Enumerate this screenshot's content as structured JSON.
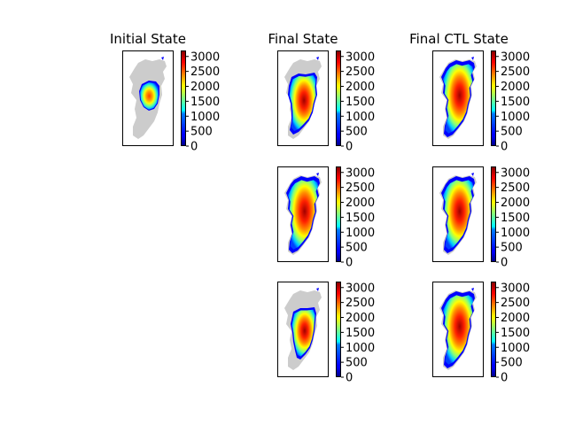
{
  "chart_data": {
    "type": "heatmap",
    "colormap": "jet",
    "background_land_color": "#cccccc",
    "frame_color": "#000000",
    "columns": [
      {
        "title": "Initial State",
        "panels": 1
      },
      {
        "title": "Final State",
        "panels": 3
      },
      {
        "title": "Final CTL State",
        "panels": 3
      }
    ],
    "colorbar": {
      "vmin": 0,
      "vmax": 3200,
      "ticks": [
        0,
        500,
        1000,
        1500,
        2000,
        2500,
        3000
      ],
      "tick_labels": [
        "0",
        "500",
        "1000",
        "1500",
        "2000",
        "2500",
        "3000"
      ]
    },
    "panels": [
      {
        "column": "Initial State",
        "row": 1,
        "ice_extent": "small-central",
        "peak": 2500
      },
      {
        "column": "Final State",
        "row": 1,
        "ice_extent": "partial",
        "peak": 3100
      },
      {
        "column": "Final State",
        "row": 2,
        "ice_extent": "full",
        "peak": 3200
      },
      {
        "column": "Final State",
        "row": 3,
        "ice_extent": "partial-retreat",
        "peak": 3100
      },
      {
        "column": "Final CTL State",
        "row": 1,
        "ice_extent": "full",
        "peak": 3200
      },
      {
        "column": "Final CTL State",
        "row": 2,
        "ice_extent": "full",
        "peak": 3200
      },
      {
        "column": "Final CTL State",
        "row": 3,
        "ice_extent": "full",
        "peak": 3200
      }
    ]
  }
}
